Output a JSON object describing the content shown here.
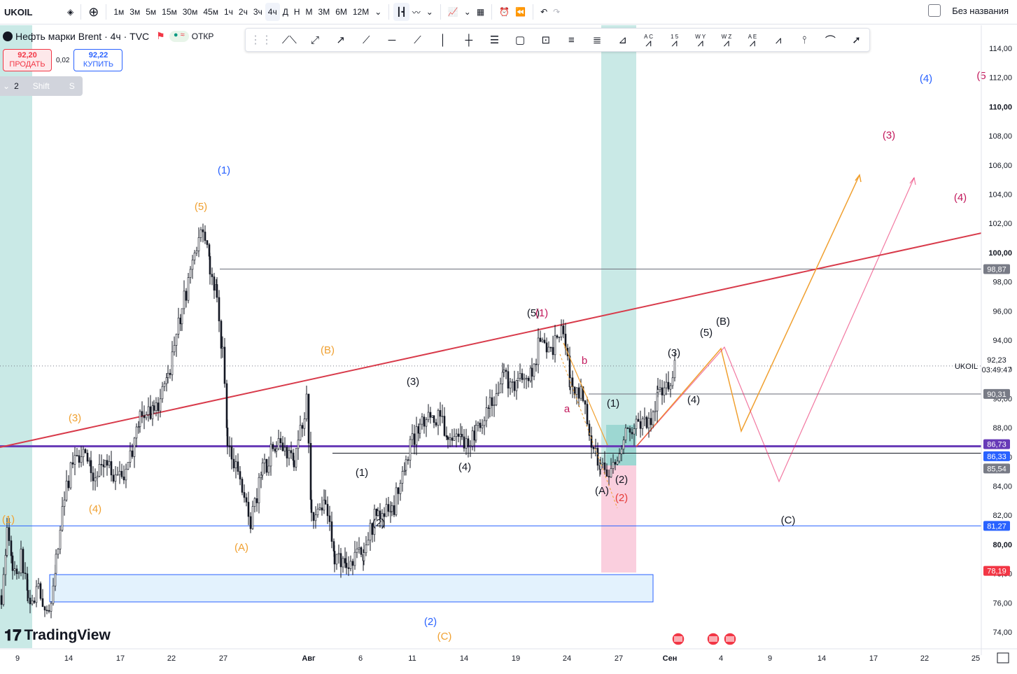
{
  "toolbar": {
    "symbol": "UKOIL",
    "intervals": [
      "1м",
      "3м",
      "5м",
      "15м",
      "30м",
      "45м",
      "1ч",
      "2ч",
      "3ч",
      "4ч",
      "Д",
      "Н",
      "М",
      "3М",
      "6М",
      "12М"
    ],
    "active_interval": "4ч",
    "layout_name": "Без названия",
    "icons": [
      "compare-icon",
      "add-symbol-icon",
      "candles-icon",
      "line-chart-icon",
      "indicators-icon",
      "templates-icon",
      "alert-icon",
      "replay-icon",
      "undo-icon",
      "redo-icon"
    ]
  },
  "legend": {
    "title": "Нефть марки Brent · 4ч · TVC",
    "status": "ОТКР"
  },
  "trade": {
    "sell_price": "92,20",
    "sell_label": "ПРОДАТЬ",
    "spread": "0,02",
    "buy_price": "92,22",
    "buy_label": "КУПИТЬ"
  },
  "mini_toolbar": {
    "count": "2",
    "shift": "Shift",
    "s": "S"
  },
  "drawing_tools": [
    "polyline-icon",
    "rays-icon",
    "arrow-icon",
    "trend-angle-icon",
    "horizontal-ray-icon",
    "extended-line-icon",
    "vertical-line-icon",
    "cross-line-icon",
    "parallel-channel-icon",
    "rectangle-icon",
    "text-note-icon",
    "fib-retracement-icon",
    "fib-channel-icon",
    "gann-fan-icon",
    "abc-pattern-icon",
    "elliott-impulse-icon",
    "elliott-wxy-icon",
    "elliott-wxyxz-icon",
    "elliott-triangle-icon",
    "head-shoulders-icon",
    "long-position-icon",
    "brush-icon",
    "arrow-marker-icon"
  ],
  "drawing_tool_labels": [
    "A C",
    "1 5",
    "W Y",
    "W Z",
    "A E"
  ],
  "axis": {
    "y_ticks": [
      "114,00",
      "112,00",
      "110,00",
      "108,00",
      "106,00",
      "104,00",
      "102,00",
      "100,00",
      "98,00",
      "96,00",
      "94,00",
      "92,00",
      "90,00",
      "88,00",
      "86,00",
      "84,00",
      "82,00",
      "80,00",
      "78,00",
      "76,00",
      "74,00"
    ],
    "x_ticks": [
      "9",
      "14",
      "17",
      "22",
      "27",
      "Авг",
      "6",
      "11",
      "14",
      "19",
      "24",
      "27",
      "Сен",
      "4",
      "9",
      "14",
      "17",
      "22",
      "25"
    ],
    "price_labels": [
      {
        "text": "98,87",
        "bg": "#787b86"
      },
      {
        "text": "92,23",
        "bg": "#ffffff",
        "fg": "#131722"
      },
      {
        "text": "03:49:47",
        "bg": "#ffffff",
        "fg": "#131722"
      },
      {
        "text": "90,31",
        "bg": "#787b86"
      },
      {
        "text": "86,73",
        "bg": "#673ab7"
      },
      {
        "text": "86,33",
        "bg": "#2962ff"
      },
      {
        "text": "85,54",
        "bg": "#787b86"
      },
      {
        "text": "81,27",
        "bg": "#2962ff"
      },
      {
        "text": "78,19",
        "bg": "#f23645"
      }
    ],
    "series_tag": "UKOIL"
  },
  "waves": [
    {
      "t": "(1)",
      "c": "#2962ff"
    },
    {
      "t": "(5)",
      "c": "#f0a030"
    },
    {
      "t": "(3)",
      "c": "#f0a030"
    },
    {
      "t": "(4)",
      "c": "#f0a030"
    },
    {
      "t": "(1)",
      "c": "#f0a030"
    },
    {
      "t": "(A)",
      "c": "#f0a030"
    },
    {
      "t": "(B)",
      "c": "#f0a030"
    },
    {
      "t": "(2)",
      "c": "#2962ff"
    },
    {
      "t": "(C)",
      "c": "#f0a030"
    },
    {
      "t": "(1)",
      "c": "#131722"
    },
    {
      "t": "(2)",
      "c": "#131722"
    },
    {
      "t": "(3)",
      "c": "#131722"
    },
    {
      "t": "(4)",
      "c": "#131722"
    },
    {
      "t": "(5)",
      "c": "#131722"
    },
    {
      "t": "(1)",
      "c": "#c2185b"
    },
    {
      "t": "a",
      "c": "#c2185b"
    },
    {
      "t": "b",
      "c": "#c2185b"
    },
    {
      "t": "(A)",
      "c": "#131722"
    },
    {
      "t": "(1)",
      "c": "#131722"
    },
    {
      "t": "(2)",
      "c": "#131722"
    },
    {
      "t": "(2)",
      "c": "#e53935"
    },
    {
      "t": "(3)",
      "c": "#131722"
    },
    {
      "t": "(4)",
      "c": "#131722"
    },
    {
      "t": "(5)",
      "c": "#131722"
    },
    {
      "t": "(B)",
      "c": "#131722"
    },
    {
      "t": "(C)",
      "c": "#131722"
    },
    {
      "t": "(4)",
      "c": "#2962ff"
    },
    {
      "t": "(3)",
      "c": "#c2185b"
    },
    {
      "t": "(4)",
      "c": "#c2185b"
    },
    {
      "t": "(5",
      "c": "#c2185b"
    }
  ],
  "branding": "TradingView",
  "colors": {
    "up": "#131722",
    "down": "#131722",
    "trend": "#d83a4a",
    "support": "#673ab7",
    "fill_green": "#b2dfdb",
    "fill_red": "#f8bbd0",
    "box_blue": "#e3f2fd"
  }
}
